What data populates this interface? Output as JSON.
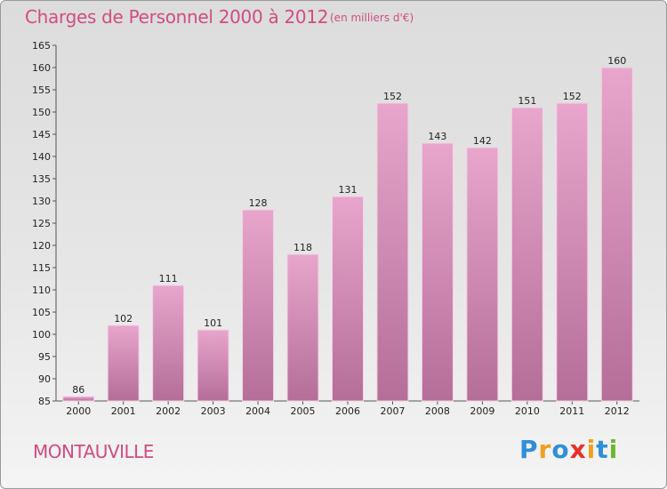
{
  "header": {
    "title": "Charges de Personnel 2000 à 2012",
    "unit": "(en milliers d'€)"
  },
  "footer": {
    "commune": "MONTAUVILLE",
    "logo_letters": [
      "P",
      "r",
      "o",
      "x",
      "i",
      "t",
      "i"
    ],
    "logo_colors": [
      "#2f8fd8",
      "#f0a020",
      "#2f8fd8",
      "#e8302a",
      "#f0a020",
      "#2f8fd8",
      "#6cb82c"
    ]
  },
  "colors": {
    "bar_top": "#e8a6cc",
    "bar_bottom": "#b46e98",
    "title": "#d04c80"
  },
  "chart_data": {
    "type": "bar",
    "title": "Charges de Personnel 2000 à 2012",
    "subtitle": "(en milliers d'€)",
    "categories": [
      "2000",
      "2001",
      "2002",
      "2003",
      "2004",
      "2005",
      "2006",
      "2007",
      "2008",
      "2009",
      "2010",
      "2011",
      "2012"
    ],
    "values": [
      86,
      102,
      111,
      101,
      128,
      118,
      131,
      152,
      143,
      142,
      151,
      152,
      160
    ],
    "ylim": [
      85,
      165
    ],
    "yticks": [
      85,
      90,
      95,
      100,
      105,
      110,
      115,
      120,
      125,
      130,
      135,
      140,
      145,
      150,
      155,
      160,
      165
    ],
    "grid": false
  }
}
